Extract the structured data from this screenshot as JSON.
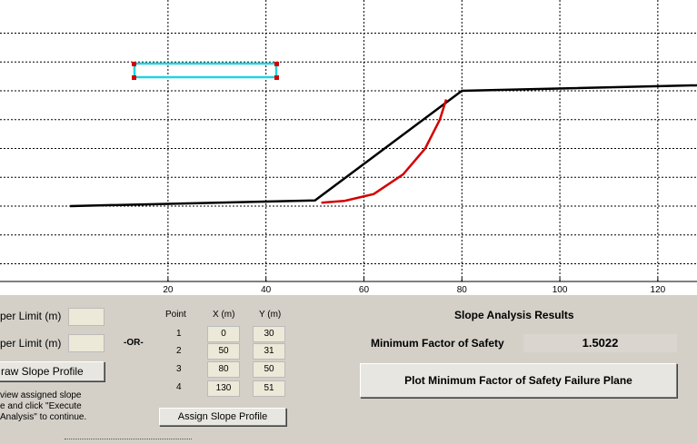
{
  "plot": {
    "x_ticks": [
      "20",
      "40",
      "60",
      "80",
      "100",
      "120"
    ],
    "profile_points": [
      [
        0,
        30
      ],
      [
        50,
        31
      ],
      [
        80,
        50
      ],
      [
        130,
        51
      ]
    ],
    "failure_curve": [
      [
        51.3,
        30.6
      ],
      [
        56,
        30.9
      ],
      [
        62,
        32.1
      ],
      [
        68,
        35.5
      ],
      [
        72.5,
        40
      ],
      [
        75.5,
        45
      ],
      [
        76.8,
        48.5
      ]
    ],
    "x_range": [
      -14.3,
      128
    ],
    "colors": {
      "profile": "#000000",
      "failure_plane": "#d40000",
      "selection_box": "#22d3e0",
      "handles": "#d40000"
    }
  },
  "controls": {
    "upper_limit_label_1": "per Limit (m)",
    "upper_limit_label_2": "per Limit (m)",
    "or_label": "-OR-",
    "draw_button": "raw Slope Profile",
    "instruction_lines": [
      "view assigned slope",
      "e and click \"Execute",
      "Analysis\" to continue."
    ],
    "table": {
      "headers": {
        "point": "Point",
        "x": "X (m)",
        "y": "Y (m)"
      },
      "rows": [
        {
          "point": "1",
          "x": "0",
          "y": "30"
        },
        {
          "point": "2",
          "x": "50",
          "y": "31"
        },
        {
          "point": "3",
          "x": "80",
          "y": "50"
        },
        {
          "point": "4",
          "x": "130",
          "y": "51"
        }
      ]
    },
    "assign_button": "Assign Slope Profile"
  },
  "results": {
    "title": "Slope Analysis Results",
    "min_fos_label": "Minimum Factor of Safety",
    "min_fos_value": "1.5022",
    "plot_button": "Plot Minimum Factor of Safety Failure Plane"
  }
}
